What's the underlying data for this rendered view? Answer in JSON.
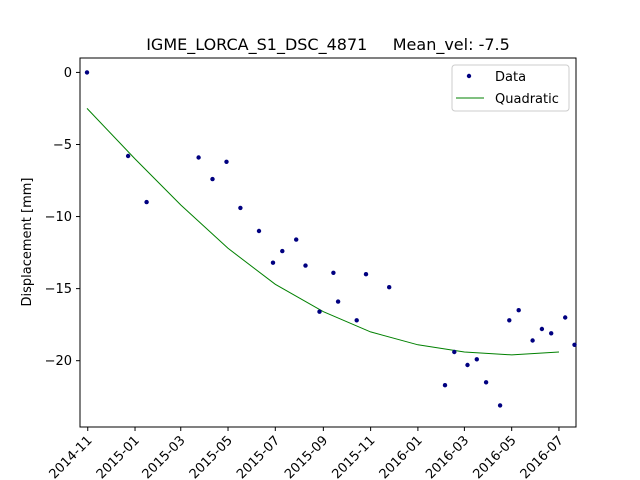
{
  "chart_data": {
    "type": "scatter",
    "title": "IGME_LORCA_S1_DSC_4871     Mean_vel: -7.5",
    "xlabel": "",
    "ylabel": "Displacement [mm]",
    "x_ticks": [
      "2014-11",
      "2015-01",
      "2015-03",
      "2015-05",
      "2015-07",
      "2015-09",
      "2015-11",
      "2016-01",
      "2016-03",
      "2016-05",
      "2016-07"
    ],
    "y_ticks": [
      0,
      -5,
      -10,
      -15,
      -20
    ],
    "xlim": [
      "2014-10-22",
      "2016-07-23"
    ],
    "ylim": [
      -24.6,
      1.0
    ],
    "grid": false,
    "legend_position": "top-right",
    "series": [
      {
        "name": "Data",
        "kind": "points",
        "color": "#000080",
        "x": [
          "2014-10-31",
          "2014-12-23",
          "2015-01-16",
          "2015-03-24",
          "2015-04-11",
          "2015-04-29",
          "2015-05-17",
          "2015-06-10",
          "2015-06-28",
          "2015-07-10",
          "2015-07-28",
          "2015-08-09",
          "2015-08-27",
          "2015-09-14",
          "2015-09-20",
          "2015-10-14",
          "2015-10-26",
          "2015-11-25",
          "2016-02-05",
          "2016-02-17",
          "2016-03-05",
          "2016-03-17",
          "2016-03-29",
          "2016-04-16",
          "2016-04-28",
          "2016-05-10",
          "2016-05-28",
          "2016-06-09",
          "2016-06-21",
          "2016-07-09",
          "2016-07-21"
        ],
        "y": [
          0.0,
          -5.8,
          -9.0,
          -5.9,
          -7.4,
          -6.2,
          -9.4,
          -11.0,
          -13.2,
          -12.4,
          -11.6,
          -13.4,
          -16.6,
          -13.9,
          -15.9,
          -17.2,
          -14.0,
          -14.9,
          -21.7,
          -19.4,
          -20.3,
          -19.9,
          -21.5,
          -23.1,
          -17.2,
          -16.5,
          -18.6,
          -17.8,
          -18.1,
          -17.0,
          -18.9
        ]
      },
      {
        "name": "Quadratic",
        "kind": "line",
        "color": "#008000",
        "x": [
          "2014-10-31",
          "2015-01-01",
          "2015-03-01",
          "2015-05-01",
          "2015-07-01",
          "2015-09-01",
          "2015-11-01",
          "2016-01-01",
          "2016-03-01",
          "2016-05-01",
          "2016-07-01"
        ],
        "y": [
          -2.5,
          -6.0,
          -9.2,
          -12.2,
          -14.7,
          -16.6,
          -18.0,
          -18.9,
          -19.4,
          -19.6,
          -19.4
        ]
      }
    ]
  }
}
